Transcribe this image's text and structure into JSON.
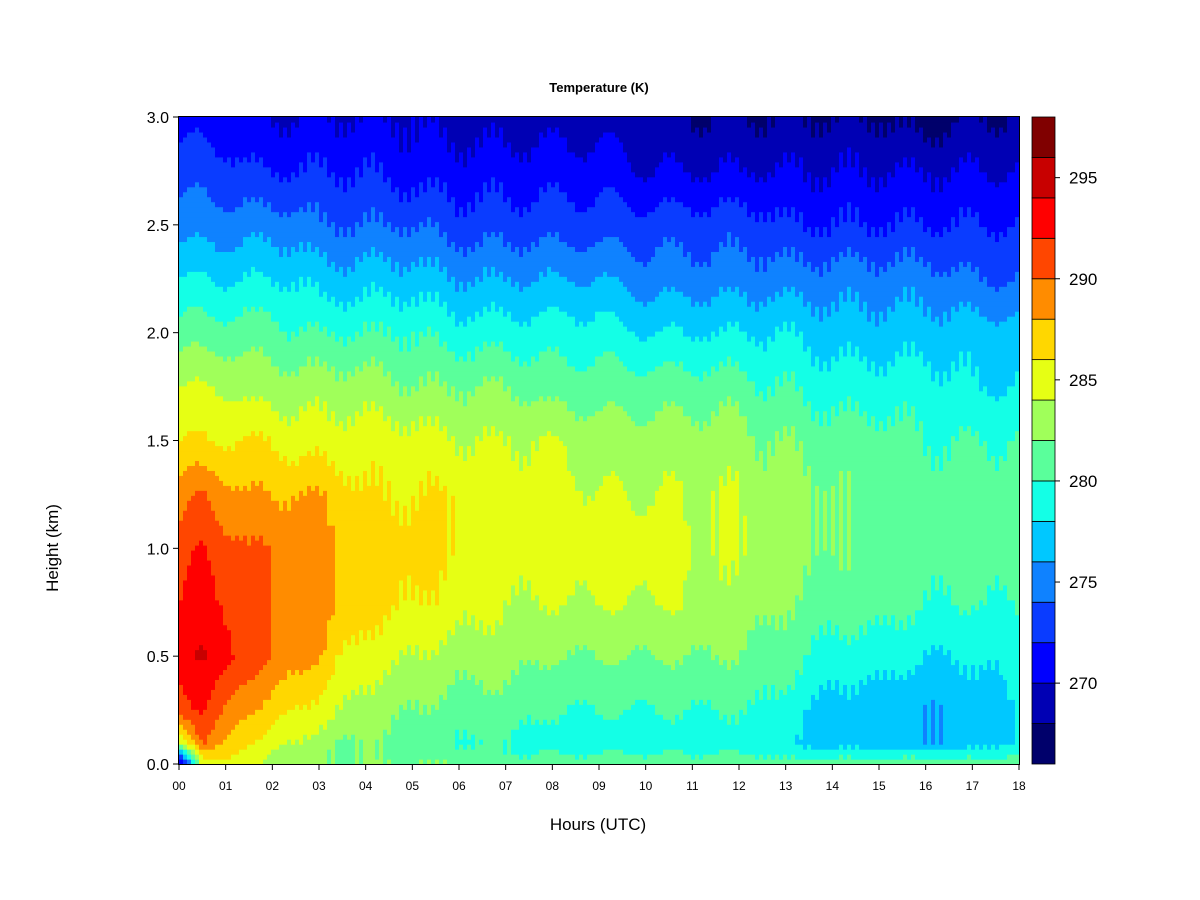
{
  "chart_data": {
    "type": "heatmap",
    "title": "Temperature (K)",
    "xlabel": "Hours (UTC)",
    "ylabel": "Height (km)",
    "xlim": [
      0,
      18
    ],
    "ylim": [
      0,
      3
    ],
    "x_tick_labels": [
      "00",
      "01",
      "02",
      "03",
      "04",
      "05",
      "06",
      "07",
      "08",
      "09",
      "10",
      "11",
      "12",
      "13",
      "14",
      "15",
      "16",
      "17",
      "18"
    ],
    "y_ticks": [
      0.0,
      0.5,
      1.0,
      1.5,
      2.0,
      2.5,
      3.0
    ],
    "y_tick_labels": [
      "0.0",
      "0.5",
      "1.0",
      "1.5",
      "2.0",
      "2.5",
      "3.0"
    ],
    "colorbar": {
      "min": 266,
      "max": 298,
      "ticks": [
        270,
        275,
        280,
        285,
        290,
        295
      ],
      "tick_labels": [
        "270",
        "275",
        "280",
        "285",
        "290",
        "295"
      ],
      "levels": [
        266,
        268,
        270,
        272,
        274,
        276,
        278,
        280,
        282,
        284,
        286,
        288,
        290,
        292,
        294,
        296,
        298
      ],
      "colors": [
        "#00006b",
        "#0000b4",
        "#0000ff",
        "#0a3cff",
        "#0f82ff",
        "#00c8ff",
        "#14ffe6",
        "#5aff9b",
        "#a0ff5a",
        "#e6ff14",
        "#ffd700",
        "#ff8c00",
        "#ff4600",
        "#ff0000",
        "#c80000",
        "#800000"
      ]
    },
    "profile_hours": [
      0,
      0.5,
      1,
      1.5,
      2,
      2.5,
      3,
      3.5,
      4,
      5,
      6,
      7,
      8,
      9,
      10,
      11,
      12,
      12.5,
      13,
      14,
      15,
      16,
      17,
      18
    ],
    "profile_heights_km": [
      0.0,
      0.05,
      0.1,
      0.25,
      0.5,
      0.75,
      1.0,
      1.25,
      1.5,
      1.75,
      2.0,
      2.25,
      2.5,
      2.75,
      3.0
    ],
    "temperature_K": [
      [
        267,
        275,
        284,
        291,
        293,
        292,
        291,
        289,
        286,
        284,
        281,
        278,
        275,
        273,
        271
      ],
      [
        284,
        287,
        290,
        292,
        294,
        293,
        292,
        290,
        286,
        284,
        281,
        278,
        275,
        273,
        271
      ],
      [
        286,
        287,
        288,
        290,
        293,
        292,
        291,
        289,
        286,
        284,
        281,
        278,
        275,
        273,
        271
      ],
      [
        284,
        285,
        286,
        288,
        291,
        291,
        290,
        288,
        286,
        283,
        281,
        278,
        275,
        272,
        270
      ],
      [
        283,
        284,
        285,
        287,
        290,
        290,
        290,
        288,
        286,
        283,
        281,
        278,
        275,
        272,
        270
      ],
      [
        283,
        283,
        284,
        286,
        289,
        290,
        290,
        288,
        285,
        283,
        280,
        278,
        275,
        272,
        270
      ],
      [
        282,
        282,
        283,
        285,
        288,
        289,
        289,
        288,
        285,
        283,
        280,
        277,
        274,
        272,
        270
      ],
      [
        282,
        282,
        282,
        284,
        286,
        288,
        288,
        287,
        285,
        283,
        280,
        277,
        274,
        272,
        270
      ],
      [
        282,
        282,
        282,
        283,
        285,
        287,
        287,
        286,
        285,
        283,
        280,
        277,
        274,
        272,
        270
      ],
      [
        282,
        281,
        281,
        282,
        284,
        286,
        287,
        286,
        285,
        282,
        280,
        277,
        274,
        271,
        270
      ],
      [
        282,
        281,
        280,
        281,
        283,
        285,
        286,
        286,
        284,
        282,
        279,
        276,
        273,
        271,
        269
      ],
      [
        281,
        280,
        280,
        281,
        283,
        284,
        285,
        285,
        284,
        282,
        279,
        276,
        273,
        271,
        269
      ],
      [
        281,
        280,
        279,
        280,
        282,
        284,
        285,
        285,
        284,
        281,
        279,
        276,
        273,
        271,
        269
      ],
      [
        281,
        280,
        279,
        280,
        282,
        284,
        285,
        284,
        283,
        281,
        279,
        276,
        273,
        271,
        269
      ],
      [
        281,
        280,
        279,
        280,
        282,
        284,
        285,
        284,
        283,
        281,
        278,
        275,
        273,
        270,
        269
      ],
      [
        281,
        280,
        279,
        280,
        282,
        284,
        284,
        284,
        283,
        281,
        278,
        275,
        273,
        270,
        268
      ],
      [
        281,
        280,
        279,
        280,
        282,
        283,
        284,
        284,
        283,
        281,
        278,
        275,
        273,
        270,
        268
      ],
      [
        281,
        280,
        279,
        280,
        281,
        283,
        284,
        283,
        282,
        280,
        278,
        275,
        273,
        270,
        268
      ],
      [
        281,
        279,
        278,
        279,
        281,
        282,
        283,
        283,
        282,
        280,
        278,
        275,
        272,
        270,
        268
      ],
      [
        281,
        279,
        277,
        277,
        279,
        281,
        282,
        282,
        281,
        279,
        277,
        275,
        272,
        270,
        268
      ],
      [
        281,
        279,
        277,
        277,
        279,
        281,
        281,
        281,
        281,
        279,
        277,
        275,
        272,
        270,
        268
      ],
      [
        281,
        279,
        276,
        276,
        278,
        280,
        281,
        281,
        280,
        279,
        277,
        275,
        272,
        270,
        267
      ],
      [
        281,
        279,
        277,
        277,
        278,
        280,
        281,
        281,
        280,
        278,
        277,
        274,
        272,
        270,
        268
      ],
      [
        281,
        280,
        278,
        278,
        279,
        280,
        281,
        281,
        280,
        278,
        277,
        274,
        272,
        270,
        268
      ]
    ]
  }
}
